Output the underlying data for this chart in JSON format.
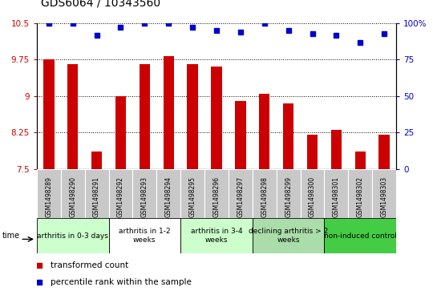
{
  "title": "GDS6064 / 10343560",
  "samples": [
    "GSM1498289",
    "GSM1498290",
    "GSM1498291",
    "GSM1498292",
    "GSM1498293",
    "GSM1498294",
    "GSM1498295",
    "GSM1498296",
    "GSM1498297",
    "GSM1498298",
    "GSM1498299",
    "GSM1498300",
    "GSM1498301",
    "GSM1498302",
    "GSM1498303"
  ],
  "bar_values": [
    9.75,
    9.65,
    7.85,
    9.0,
    9.65,
    9.83,
    9.65,
    9.6,
    8.9,
    9.05,
    8.85,
    8.2,
    8.3,
    7.85,
    8.2
  ],
  "percentile_values": [
    100,
    100,
    92,
    97,
    100,
    100,
    97,
    95,
    94,
    100,
    95,
    93,
    92,
    87,
    93
  ],
  "bar_color": "#cc0000",
  "dot_color": "#0000cc",
  "ylim_left": [
    7.5,
    10.5
  ],
  "ylim_right": [
    0,
    100
  ],
  "yticks_left": [
    7.5,
    8.25,
    9.0,
    9.75,
    10.5
  ],
  "yticks_right": [
    0,
    25,
    50,
    75,
    100
  ],
  "ytick_labels_left": [
    "7.5",
    "8.25",
    "9",
    "9.75",
    "10.5"
  ],
  "ytick_labels_right": [
    "0",
    "25",
    "50",
    "75",
    "100%"
  ],
  "groups": [
    {
      "label": "arthritis in 0-3 days",
      "start": 0,
      "end": 3,
      "color": "#ccffcc"
    },
    {
      "label": "arthritis in 1-2\nweeks",
      "start": 3,
      "end": 6,
      "color": "#ffffff"
    },
    {
      "label": "arthritis in 3-4\nweeks",
      "start": 6,
      "end": 9,
      "color": "#ccffcc"
    },
    {
      "label": "declining arthritis > 2\nweeks",
      "start": 9,
      "end": 12,
      "color": "#aaddaa"
    },
    {
      "label": "non-induced control",
      "start": 12,
      "end": 15,
      "color": "#44cc44"
    }
  ],
  "legend_items": [
    {
      "label": "transformed count",
      "color": "#cc0000"
    },
    {
      "label": "percentile rank within the sample",
      "color": "#0000cc"
    }
  ],
  "bar_width": 0.45,
  "background_color": "#ffffff",
  "title_fontsize": 10,
  "tick_fontsize": 7.5,
  "sample_fontsize": 5.5,
  "group_fontsize": 6.5,
  "legend_fontsize": 7.5
}
